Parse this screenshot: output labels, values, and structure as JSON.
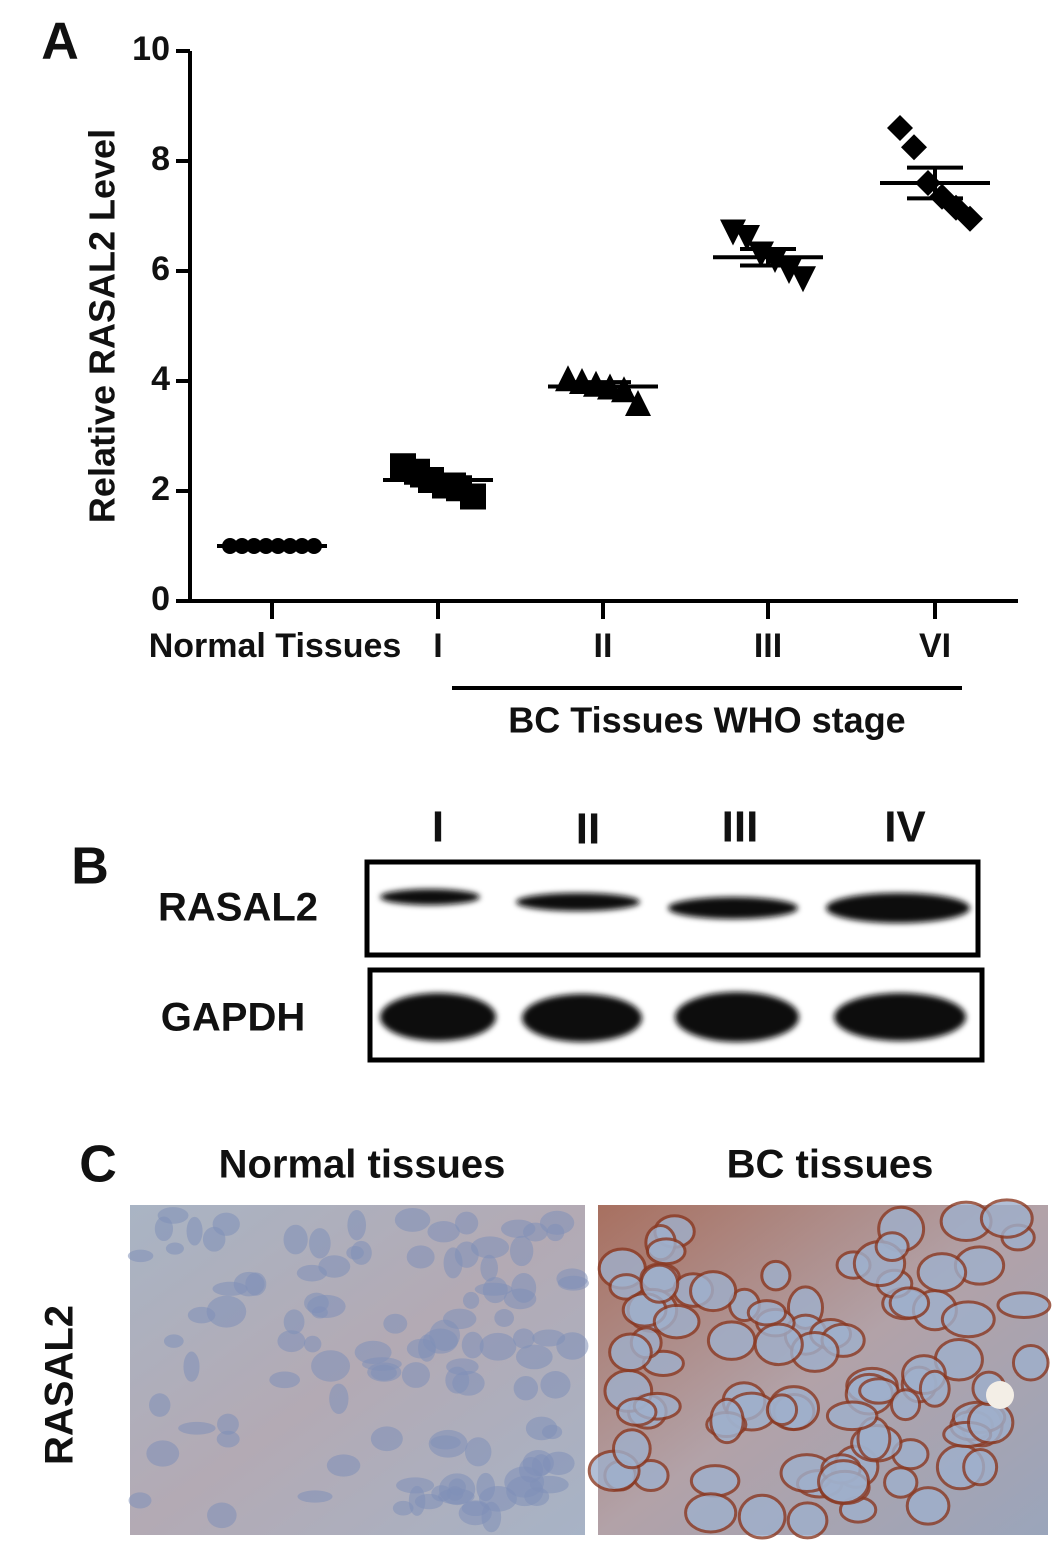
{
  "panel_labels": [
    "A",
    "B",
    "C"
  ],
  "chart_data": {
    "type": "strip",
    "y_label": "Relative RASAL2 Level",
    "categories": [
      "Normal Tissues",
      "I",
      "II",
      "III",
      "VI"
    ],
    "group_label": "BC Tissues WHO stage",
    "values": [
      [
        1,
        1,
        1,
        1,
        1,
        1,
        1,
        1
      ],
      [
        2.45,
        2.35,
        2.2,
        2.1,
        2.05,
        1.9
      ],
      [
        4.05,
        4.0,
        3.95,
        3.9,
        3.85,
        3.6
      ],
      [
        6.7,
        6.6,
        6.3,
        6.2,
        6.0,
        5.85
      ],
      [
        8.6,
        8.25,
        7.6,
        7.35,
        7.15,
        6.95
      ]
    ],
    "means": [
      1,
      2.2,
      3.9,
      6.25,
      7.6
    ],
    "sem": [
      0,
      0.1,
      0.08,
      0.15,
      0.28
    ],
    "markers": [
      "circle",
      "square",
      "triangle",
      "triangle-down",
      "diamond"
    ],
    "color": "#000000",
    "ylim": [
      0,
      10
    ],
    "yticks": [
      0,
      2,
      4,
      6,
      8,
      10
    ]
  },
  "blot": {
    "lanes": [
      "I",
      "II",
      "III",
      "IV"
    ],
    "rows": [
      "RASAL2",
      "GAPDH"
    ]
  },
  "ihc": {
    "columns": [
      "Normal tissues",
      "BC tissues"
    ],
    "row": "RASAL2"
  }
}
